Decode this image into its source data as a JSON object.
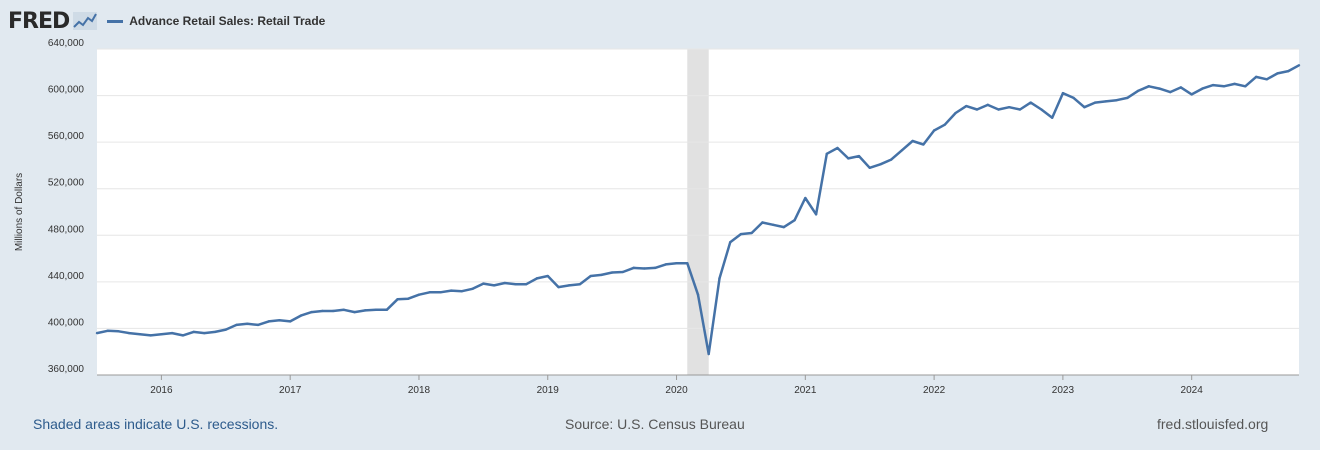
{
  "header": {
    "logo_text": "FRED",
    "series_title": "Advance Retail Sales: Retail Trade"
  },
  "footer": {
    "recession_note": "Shaded areas indicate U.S. recessions.",
    "source": "Source: U.S. Census Bureau",
    "site": "fred.stlouisfed.org"
  },
  "colors": {
    "series": "#4572a7",
    "background": "#e1e9f0",
    "plot": "#ffffff",
    "recession": "#e1e1e1",
    "grid": "#e6e6e6"
  },
  "chart_data": {
    "type": "line",
    "ylabel": "Millions of Dollars",
    "xlabel": "",
    "y_ticks": [
      360000,
      400000,
      440000,
      480000,
      520000,
      560000,
      600000,
      640000
    ],
    "y_tick_labels": [
      "360,000",
      "400,000",
      "440,000",
      "480,000",
      "520,000",
      "560,000",
      "600,000",
      "640,000"
    ],
    "x_tick_labels": [
      "2016",
      "2017",
      "2018",
      "2019",
      "2020",
      "2021",
      "2022",
      "2023",
      "2024"
    ],
    "ylim": [
      360000,
      640000
    ],
    "xlim": [
      "2015-07",
      "2024-11"
    ],
    "grid": true,
    "recessions": [
      [
        "2020-02",
        "2020-04"
      ]
    ],
    "series": [
      {
        "name": "Advance Retail Sales: Retail Trade",
        "x": [
          "2015-07",
          "2015-08",
          "2015-09",
          "2015-10",
          "2015-11",
          "2015-12",
          "2016-01",
          "2016-02",
          "2016-03",
          "2016-04",
          "2016-05",
          "2016-06",
          "2016-07",
          "2016-08",
          "2016-09",
          "2016-10",
          "2016-11",
          "2016-12",
          "2017-01",
          "2017-02",
          "2017-03",
          "2017-04",
          "2017-05",
          "2017-06",
          "2017-07",
          "2017-08",
          "2017-09",
          "2017-10",
          "2017-11",
          "2017-12",
          "2018-01",
          "2018-02",
          "2018-03",
          "2018-04",
          "2018-05",
          "2018-06",
          "2018-07",
          "2018-08",
          "2018-09",
          "2018-10",
          "2018-11",
          "2018-12",
          "2019-01",
          "2019-02",
          "2019-03",
          "2019-04",
          "2019-05",
          "2019-06",
          "2019-07",
          "2019-08",
          "2019-09",
          "2019-10",
          "2019-11",
          "2019-12",
          "2020-01",
          "2020-02",
          "2020-03",
          "2020-04",
          "2020-05",
          "2020-06",
          "2020-07",
          "2020-08",
          "2020-09",
          "2020-10",
          "2020-11",
          "2020-12",
          "2021-01",
          "2021-02",
          "2021-03",
          "2021-04",
          "2021-05",
          "2021-06",
          "2021-07",
          "2021-08",
          "2021-09",
          "2021-10",
          "2021-11",
          "2021-12",
          "2022-01",
          "2022-02",
          "2022-03",
          "2022-04",
          "2022-05",
          "2022-06",
          "2022-07",
          "2022-08",
          "2022-09",
          "2022-10",
          "2022-11",
          "2022-12",
          "2023-01",
          "2023-02",
          "2023-03",
          "2023-04",
          "2023-05",
          "2023-06",
          "2023-07",
          "2023-08",
          "2023-09",
          "2023-10",
          "2023-11",
          "2023-12",
          "2024-01",
          "2024-02",
          "2024-03",
          "2024-04",
          "2024-05",
          "2024-06",
          "2024-07",
          "2024-08",
          "2024-09",
          "2024-10",
          "2024-11"
        ],
        "values": [
          396000,
          398000,
          397500,
          396000,
          395000,
          394000,
          395000,
          396000,
          394000,
          397000,
          396000,
          397000,
          399000,
          403000,
          404000,
          403000,
          406000,
          407000,
          406000,
          411000,
          414000,
          415000,
          415000,
          416000,
          414000,
          415500,
          416000,
          416000,
          425000,
          425500,
          429000,
          431000,
          431000,
          432500,
          432000,
          434000,
          438500,
          437000,
          439000,
          438000,
          438000,
          443000,
          445000,
          435500,
          437000,
          438000,
          445000,
          446000,
          448000,
          448500,
          452000,
          451500,
          452000,
          455000,
          456000,
          456000,
          429000,
          378000,
          443000,
          474000,
          481000,
          482000,
          491000,
          489000,
          487000,
          493000,
          512000,
          498000,
          550000,
          555000,
          546000,
          548000,
          538000,
          541000,
          545000,
          553000,
          561000,
          558000,
          570000,
          575000,
          585000,
          591000,
          588000,
          592000,
          588000,
          590000,
          588000,
          594000,
          588000,
          581000,
          602000,
          598000,
          590000,
          594000,
          595000,
          596000,
          598000,
          604000,
          608000,
          606000,
          603000,
          607000,
          601000,
          606000,
          609000,
          608000,
          610000,
          608000,
          616000,
          614000,
          619000,
          621000,
          626000
        ]
      }
    ]
  }
}
